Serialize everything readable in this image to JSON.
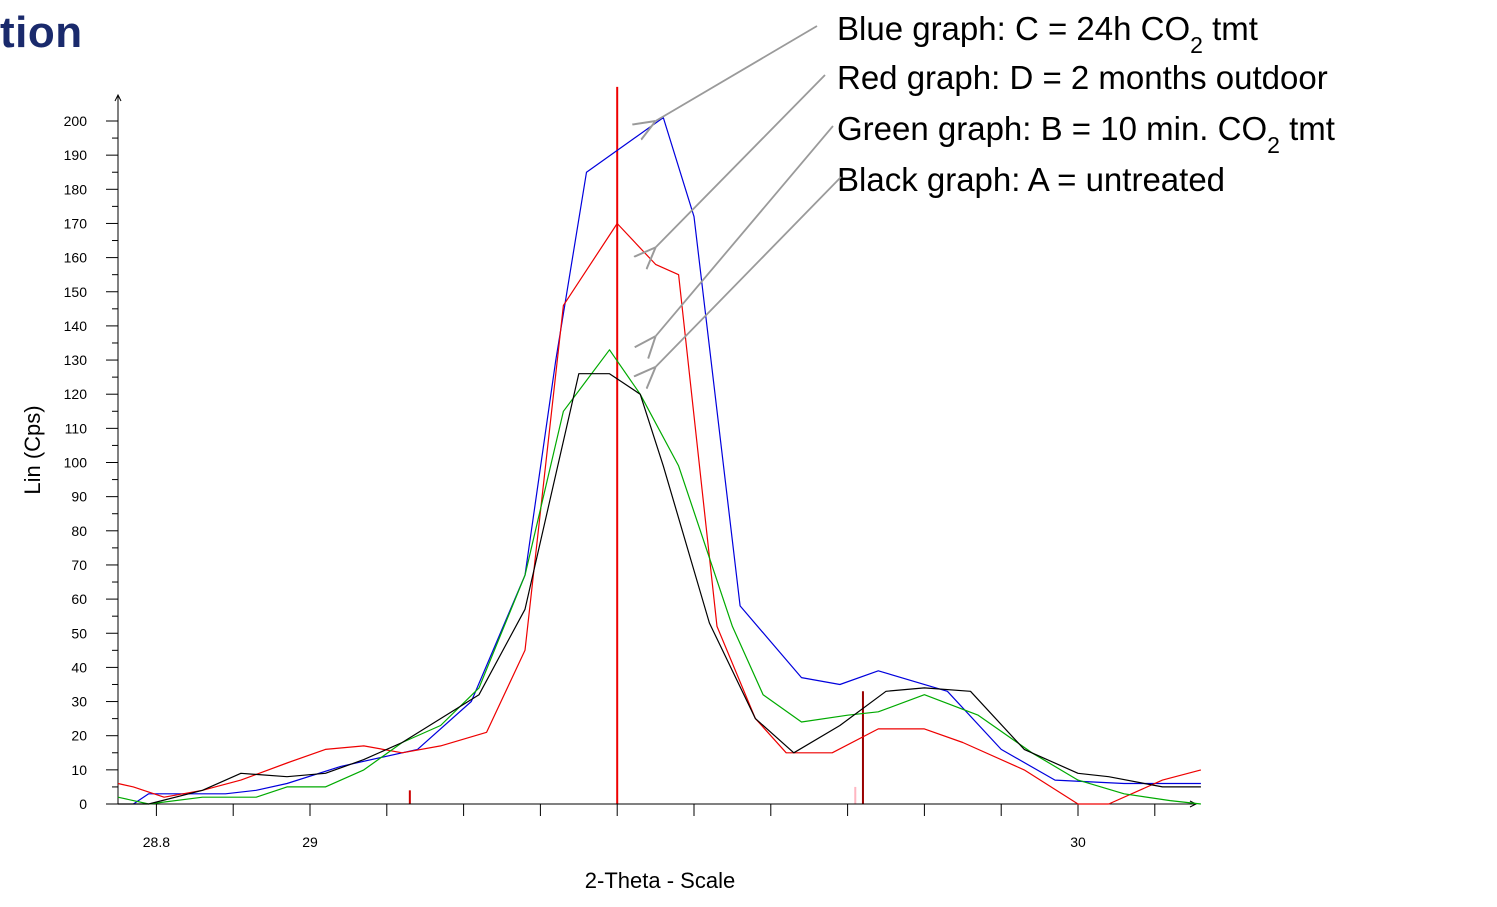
{
  "page": {
    "title_fragment": "tion"
  },
  "chart_data": {
    "type": "line",
    "xlabel": "2-Theta - Scale",
    "ylabel": "Lin (Cps)",
    "xlim": [
      28.75,
      30.16
    ],
    "ylim": [
      0,
      205
    ],
    "yticks": [
      0,
      10,
      20,
      30,
      40,
      50,
      60,
      70,
      80,
      90,
      100,
      110,
      120,
      130,
      140,
      150,
      160,
      170,
      180,
      190,
      200
    ],
    "xtick_labels": [
      {
        "value": 28.8,
        "label": "28.8"
      },
      {
        "value": 29,
        "label": "29"
      },
      {
        "value": 30,
        "label": "30"
      }
    ],
    "series": [
      {
        "key": "blue",
        "color": "#0000dd",
        "x": [
          28.77,
          28.79,
          28.84,
          28.89,
          28.93,
          28.97,
          29.04,
          29.14,
          29.21,
          29.28,
          29.32,
          29.36,
          29.46,
          29.5,
          29.56,
          29.64,
          29.69,
          29.74,
          29.83,
          29.9,
          29.97,
          30.06,
          30.16
        ],
        "y": [
          0,
          3,
          3,
          3,
          4,
          6,
          11,
          16,
          30,
          67,
          130,
          185,
          201,
          172,
          58,
          37,
          35,
          39,
          33,
          16,
          7,
          6,
          6
        ]
      },
      {
        "key": "red",
        "color": "#ee0000",
        "x": [
          28.75,
          28.77,
          28.81,
          28.86,
          28.91,
          28.97,
          29.02,
          29.07,
          29.12,
          29.17,
          29.23,
          29.28,
          29.33,
          29.4,
          29.45,
          29.48,
          29.53,
          29.58,
          29.62,
          29.68,
          29.74,
          29.8,
          29.85,
          29.93,
          30.0,
          30.04,
          30.11,
          30.16
        ],
        "y": [
          6,
          5,
          2,
          4,
          7,
          12,
          16,
          17,
          15,
          17,
          21,
          45,
          146,
          170,
          158,
          155,
          52,
          25,
          15,
          15,
          22,
          22,
          18,
          10,
          0,
          0,
          7,
          10
        ]
      },
      {
        "key": "green",
        "color": "#00aa00",
        "x": [
          28.75,
          28.79,
          28.86,
          28.93,
          28.97,
          29.02,
          29.07,
          29.12,
          29.17,
          29.22,
          29.28,
          29.33,
          29.39,
          29.43,
          29.48,
          29.55,
          29.59,
          29.64,
          29.7,
          29.74,
          29.8,
          29.87,
          29.94,
          30.0,
          30.06,
          30.12,
          30.16
        ],
        "y": [
          2,
          0,
          2,
          2,
          5,
          5,
          10,
          18,
          23,
          34,
          67,
          115,
          133,
          120,
          99,
          52,
          32,
          24,
          26,
          27,
          32,
          26,
          15,
          7,
          3,
          1,
          0
        ]
      },
      {
        "key": "black",
        "color": "#000000",
        "x": [
          28.75,
          28.79,
          28.86,
          28.91,
          28.97,
          29.02,
          29.07,
          29.12,
          29.17,
          29.22,
          29.28,
          29.35,
          29.39,
          29.43,
          29.46,
          29.52,
          29.58,
          29.63,
          29.69,
          29.75,
          29.8,
          29.86,
          29.93,
          30.0,
          30.04,
          30.11,
          30.16
        ],
        "y": [
          0,
          0,
          4,
          9,
          8,
          9,
          13,
          18,
          25,
          32,
          57,
          126,
          126,
          120,
          99,
          53,
          25,
          15,
          23,
          33,
          34,
          33,
          16,
          9,
          8,
          5,
          5
        ]
      }
    ],
    "reference_lines": [
      {
        "x": 29.4,
        "height": 210,
        "color": "#ee0000"
      },
      {
        "x": 29.72,
        "height": 33,
        "color": "#990000"
      },
      {
        "x": 29.13,
        "height": 4,
        "color": "#cc0000"
      },
      {
        "x": 29.71,
        "height": 5,
        "color": "#ffb6c1"
      }
    ],
    "annotations": [
      {
        "key": "blue",
        "prefix": "Blue graph: C = 24h CO",
        "sub": "2",
        "suffix": " tmt",
        "target": {
          "x": 29.45,
          "y": 200
        }
      },
      {
        "key": "red",
        "prefix": "Red graph: D = 2 months outdoor",
        "sub": "",
        "suffix": "",
        "target": {
          "x": 29.45,
          "y": 163
        }
      },
      {
        "key": "green",
        "prefix": "Green graph: B = 10 min. CO",
        "sub": "2",
        "suffix": " tmt",
        "target": {
          "x": 29.45,
          "y": 137
        }
      },
      {
        "key": "black",
        "prefix": "Black graph: A = untreated",
        "sub": "",
        "suffix": "",
        "target": {
          "x": 29.45,
          "y": 128
        }
      }
    ]
  }
}
